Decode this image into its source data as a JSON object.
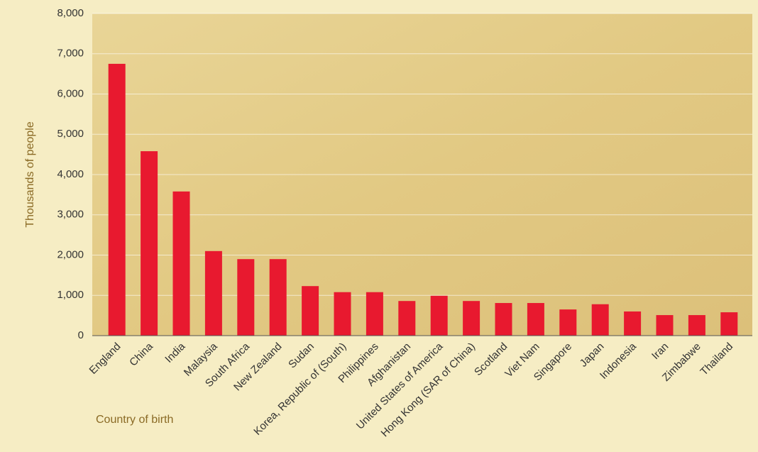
{
  "chart_data": {
    "type": "bar",
    "x_label": "Country of birth",
    "y_label": "Thousands of people",
    "categories": [
      "England",
      "China",
      "India",
      "Malaysia",
      "South Africa",
      "New Zealand",
      "Sudan",
      "Korea, Republic of (South)",
      "Philippines",
      "Afghanistan",
      "United States of America",
      "Hong Kong (SAR of China)",
      "Scotland",
      "Viet Nam",
      "Singapore",
      "Japan",
      "Indonesia",
      "Iran",
      "Zimbabwe",
      "Thailand"
    ],
    "values": [
      6750,
      4580,
      3580,
      2100,
      1900,
      1900,
      1230,
      1080,
      1080,
      860,
      990,
      860,
      810,
      810,
      650,
      780,
      600,
      510,
      510,
      580
    ],
    "color": "#e8192f",
    "ylim": [
      0,
      8000
    ],
    "yticks": [
      0,
      {
        "value": 1000,
        "label": "1,000"
      },
      {
        "value": 2000,
        "label": "2,000"
      },
      {
        "value": 3000,
        "label": "3,000"
      },
      {
        "value": 4000,
        "label": "4,000"
      },
      {
        "value": 5000,
        "label": "5,000"
      },
      {
        "value": 6000,
        "label": "6,000"
      },
      {
        "value": 7000,
        "label": "7,000"
      },
      {
        "value": 8000,
        "label": "8,000"
      }
    ],
    "grid": true
  }
}
